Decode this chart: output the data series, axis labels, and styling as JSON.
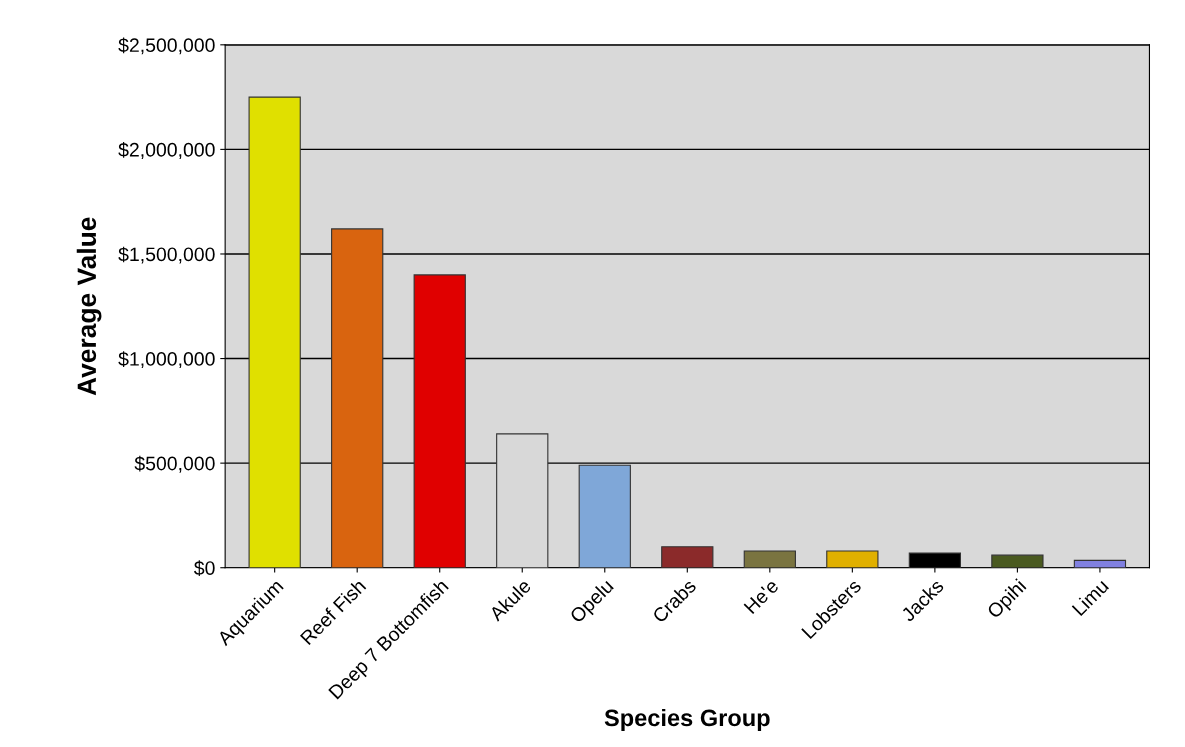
{
  "chart_data": {
    "type": "bar",
    "xlabel": "Species Group",
    "ylabel": "Average Value",
    "categories": [
      "Aquarium",
      "Reef Fish",
      "Deep 7 Bottomfish",
      "Akule",
      "Opelu",
      "Crabs",
      "He'e",
      "Lobsters",
      "Jacks",
      "Opihi",
      "Limu"
    ],
    "values": [
      2250000,
      1620000,
      1400000,
      640000,
      490000,
      100000,
      80000,
      80000,
      70000,
      60000,
      35000
    ],
    "colors": [
      "#e0e000",
      "#d9640f",
      "#e00000",
      "#d8d8d8",
      "#7fa7d8",
      "#8b2a2a",
      "#7a7440",
      "#e0b000",
      "#000000",
      "#4a5a20",
      "#8080e0"
    ],
    "ylim": [
      0,
      2500000
    ],
    "yticks": [
      {
        "value": 0,
        "label": "$0"
      },
      {
        "value": 500000,
        "label": "$500,000"
      },
      {
        "value": 1000000,
        "label": "$1,000,000"
      },
      {
        "value": 1500000,
        "label": "$1,500,000"
      },
      {
        "value": 2000000,
        "label": "$2,000,000"
      },
      {
        "value": 2500000,
        "label": "$2,500,000"
      }
    ],
    "grid": "y"
  }
}
